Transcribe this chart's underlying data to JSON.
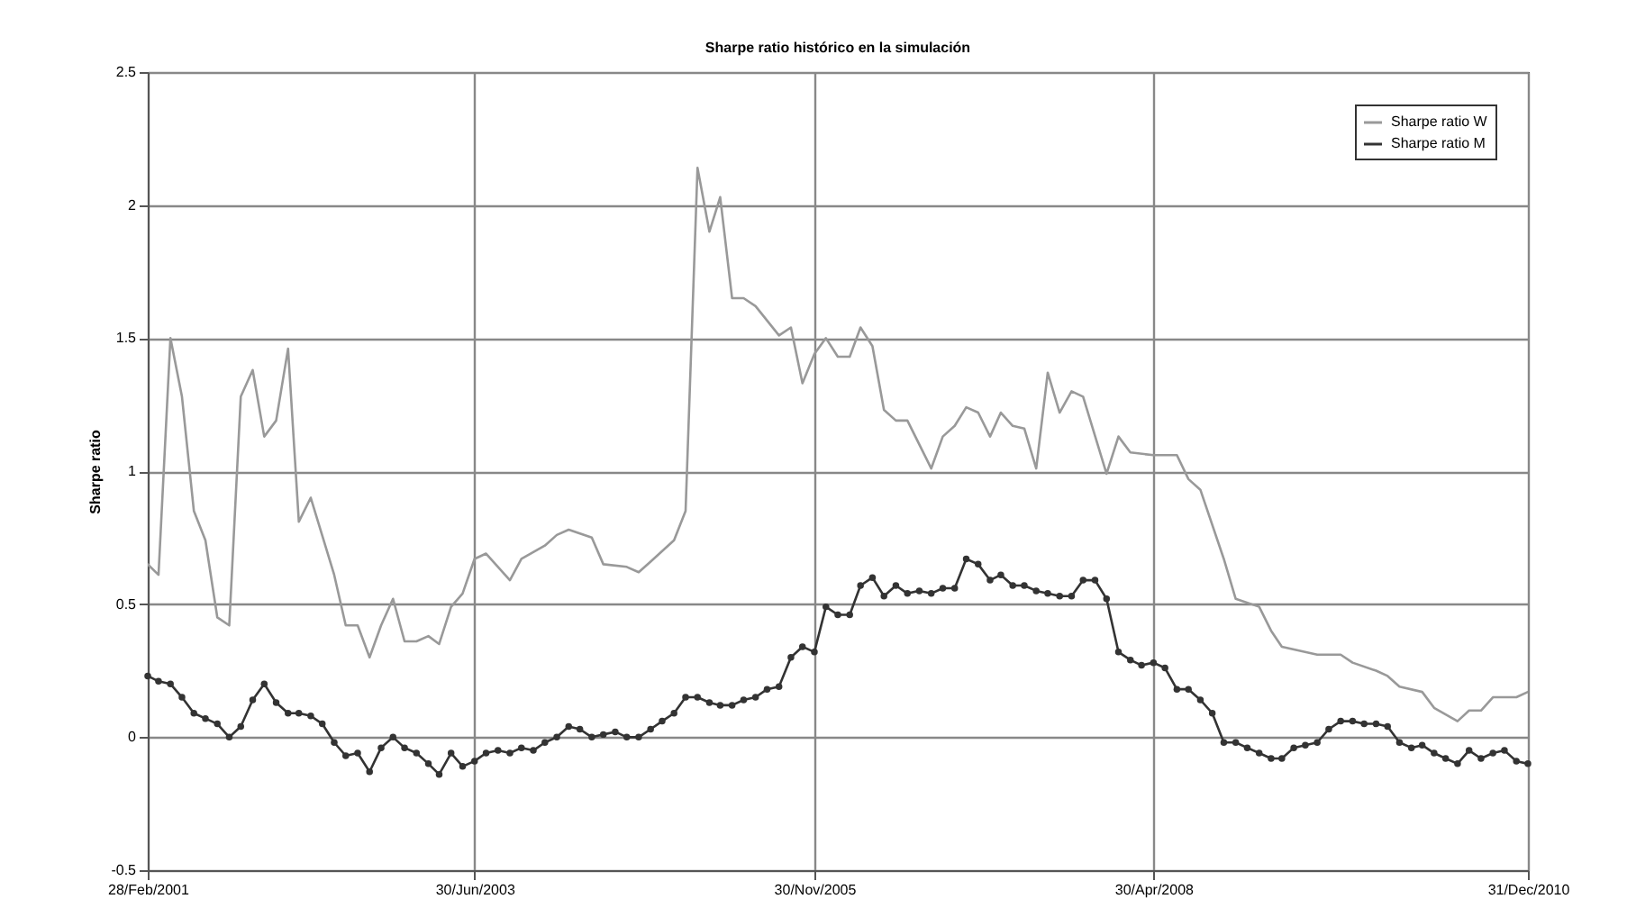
{
  "chart_data": {
    "type": "line",
    "title": "Sharpe ratio histórico en la simulación",
    "ylabel": "Sharpe ratio",
    "x": [
      "2001-02",
      "2001-03",
      "2001-04",
      "2001-05",
      "2001-06",
      "2001-07",
      "2001-08",
      "2001-09",
      "2001-10",
      "2001-11",
      "2001-12",
      "2002-01",
      "2002-02",
      "2002-03",
      "2002-04",
      "2002-05",
      "2002-06",
      "2002-07",
      "2002-08",
      "2002-09",
      "2002-10",
      "2002-11",
      "2002-12",
      "2003-01",
      "2003-02",
      "2003-03",
      "2003-04",
      "2003-05",
      "2003-06",
      "2003-07",
      "2003-08",
      "2003-09",
      "2003-10",
      "2003-11",
      "2003-12",
      "2004-01",
      "2004-02",
      "2004-03",
      "2004-04",
      "2004-05",
      "2004-06",
      "2004-07",
      "2004-08",
      "2004-09",
      "2004-10",
      "2004-11",
      "2004-12",
      "2005-01",
      "2005-02",
      "2005-03",
      "2005-04",
      "2005-05",
      "2005-06",
      "2005-07",
      "2005-08",
      "2005-09",
      "2005-10",
      "2005-11",
      "2005-12",
      "2006-01",
      "2006-02",
      "2006-03",
      "2006-04",
      "2006-05",
      "2006-06",
      "2006-07",
      "2006-08",
      "2006-09",
      "2006-10",
      "2006-11",
      "2006-12",
      "2007-01",
      "2007-02",
      "2007-03",
      "2007-04",
      "2007-05",
      "2007-06",
      "2007-07",
      "2007-08",
      "2007-09",
      "2007-10",
      "2007-11",
      "2007-12",
      "2008-01",
      "2008-02",
      "2008-03",
      "2008-04",
      "2008-05",
      "2008-06",
      "2008-07",
      "2008-08",
      "2008-09",
      "2008-10",
      "2008-11",
      "2008-12",
      "2009-01",
      "2009-02",
      "2009-03",
      "2009-04",
      "2009-05",
      "2009-06",
      "2009-07",
      "2009-08",
      "2009-09",
      "2009-10",
      "2009-11",
      "2009-12",
      "2010-01",
      "2010-02",
      "2010-03",
      "2010-04",
      "2010-05",
      "2010-06",
      "2010-07",
      "2010-08",
      "2010-09",
      "2010-10",
      "2010-11",
      "2010-12"
    ],
    "series": [
      {
        "name": "Sharpe ratio W",
        "color": "#999999",
        "marker": "none",
        "x": [
          "2001-02",
          "2001-03",
          "2001-04",
          "2001-05",
          "2001-06",
          "2001-07",
          "2001-08",
          "2001-09",
          "2001-10",
          "2001-11",
          "2001-12",
          "2002-01",
          "2002-02",
          "2002-03",
          "2002-04",
          "2002-06",
          "2002-07",
          "2002-08",
          "2002-09",
          "2002-10",
          "2002-11",
          "2002-12",
          "2003-01",
          "2003-02",
          "2003-03",
          "2003-04",
          "2003-05",
          "2003-06",
          "2003-07",
          "2003-09",
          "2003-10",
          "2003-12",
          "2004-01",
          "2004-02",
          "2004-04",
          "2004-05",
          "2004-07",
          "2004-08",
          "2004-09",
          "2004-11",
          "2004-12",
          "2005-01",
          "2005-02",
          "2005-03",
          "2005-04",
          "2005-05",
          "2005-06",
          "2005-08",
          "2005-09",
          "2005-10",
          "2005-11",
          "2005-12",
          "2006-01",
          "2006-02",
          "2006-03",
          "2006-04",
          "2006-05",
          "2006-06",
          "2006-07",
          "2006-09",
          "2006-10",
          "2006-11",
          "2006-12",
          "2007-01",
          "2007-02",
          "2007-03",
          "2007-04",
          "2007-05",
          "2007-06",
          "2007-07",
          "2007-08",
          "2007-09",
          "2007-10",
          "2007-12",
          "2008-01",
          "2008-02",
          "2008-04",
          "2008-06",
          "2008-07",
          "2008-08",
          "2008-10",
          "2008-11",
          "2009-01",
          "2009-02",
          "2009-03",
          "2009-06",
          "2009-08",
          "2009-09",
          "2009-11",
          "2009-12",
          "2010-01",
          "2010-03",
          "2010-04",
          "2010-06",
          "2010-07",
          "2010-08",
          "2010-09",
          "2010-11",
          "2010-12"
        ],
        "values": [
          0.65,
          0.61,
          1.5,
          1.28,
          0.85,
          0.74,
          0.45,
          0.42,
          1.28,
          1.38,
          1.13,
          1.19,
          1.46,
          0.81,
          0.9,
          0.61,
          0.42,
          0.42,
          0.3,
          0.42,
          0.52,
          0.36,
          0.36,
          0.38,
          0.35,
          0.49,
          0.54,
          0.67,
          0.69,
          0.59,
          0.67,
          0.72,
          0.76,
          0.78,
          0.75,
          0.65,
          0.64,
          0.62,
          0.66,
          0.74,
          0.85,
          2.14,
          1.9,
          2.03,
          1.65,
          1.65,
          1.62,
          1.51,
          1.54,
          1.33,
          1.44,
          1.5,
          1.43,
          1.43,
          1.54,
          1.47,
          1.23,
          1.19,
          1.19,
          1.01,
          1.13,
          1.17,
          1.24,
          1.22,
          1.13,
          1.22,
          1.17,
          1.16,
          1.01,
          1.37,
          1.22,
          1.3,
          1.28,
          0.99,
          1.13,
          1.07,
          1.06,
          1.06,
          0.97,
          0.93,
          0.67,
          0.52,
          0.49,
          0.4,
          0.34,
          0.31,
          0.31,
          0.28,
          0.25,
          0.23,
          0.19,
          0.17,
          0.11,
          0.06,
          0.1,
          0.1,
          0.15,
          0.15,
          0.17
        ]
      },
      {
        "name": "Sharpe ratio M",
        "color": "#333333",
        "marker": "circle",
        "values": [
          0.23,
          0.21,
          0.2,
          0.15,
          0.09,
          0.07,
          0.05,
          0.0,
          0.04,
          0.14,
          0.2,
          0.13,
          0.09,
          0.09,
          0.08,
          0.05,
          -0.02,
          -0.07,
          -0.06,
          -0.13,
          -0.04,
          0.0,
          -0.04,
          -0.06,
          -0.1,
          -0.14,
          -0.06,
          -0.11,
          -0.09,
          -0.06,
          -0.05,
          -0.06,
          -0.04,
          -0.05,
          -0.02,
          0.0,
          0.04,
          0.03,
          0.0,
          0.01,
          0.02,
          0.0,
          0.0,
          0.03,
          0.06,
          0.09,
          0.15,
          0.15,
          0.13,
          0.12,
          0.12,
          0.14,
          0.15,
          0.18,
          0.19,
          0.3,
          0.34,
          0.32,
          0.49,
          0.46,
          0.46,
          0.57,
          0.6,
          0.53,
          0.57,
          0.54,
          0.55,
          0.54,
          0.56,
          0.56,
          0.67,
          0.65,
          0.59,
          0.61,
          0.57,
          0.57,
          0.55,
          0.54,
          0.53,
          0.53,
          0.59,
          0.59,
          0.52,
          0.32,
          0.29,
          0.27,
          0.28,
          0.26,
          0.18,
          0.18,
          0.14,
          0.09,
          -0.02,
          -0.02,
          -0.04,
          -0.06,
          -0.08,
          -0.08,
          -0.04,
          -0.03,
          -0.02,
          0.03,
          0.06,
          0.06,
          0.05,
          0.05,
          0.04,
          -0.02,
          -0.04,
          -0.03,
          -0.06,
          -0.08,
          -0.1,
          -0.05,
          -0.08,
          -0.06,
          -0.05,
          -0.09,
          -0.1
        ]
      }
    ],
    "xlim": [
      "2001-02",
      "2010-12"
    ],
    "xticks": [
      {
        "value": "2001-02",
        "label": "28/Feb/2001"
      },
      {
        "value": "2003-06",
        "label": "30/Jun/2003"
      },
      {
        "value": "2005-11",
        "label": "30/Nov/2005"
      },
      {
        "value": "2008-04",
        "label": "30/Apr/2008"
      },
      {
        "value": "2010-12",
        "label": "31/Dec/2010"
      }
    ],
    "ylim": [
      -0.5,
      2.5
    ],
    "yticks": [
      -0.5,
      0,
      0.5,
      1,
      1.5,
      2,
      2.5
    ],
    "grid": true,
    "legend": "top right",
    "line_style": "solid"
  }
}
